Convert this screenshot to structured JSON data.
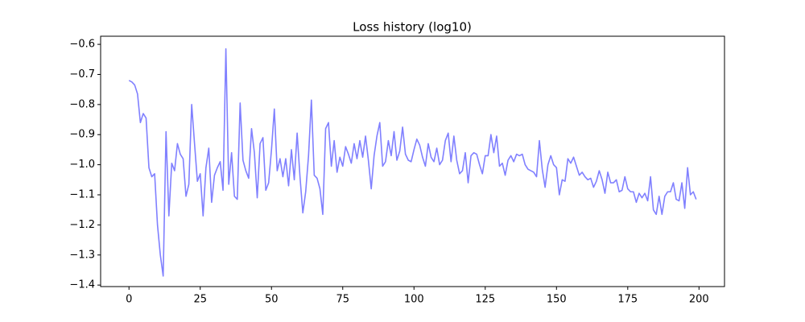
{
  "chart_data": {
    "type": "line",
    "title": "Loss history (log10)",
    "x": [
      0,
      1,
      2,
      3,
      4,
      5,
      6,
      7,
      8,
      9,
      10,
      11,
      12,
      13,
      14,
      15,
      16,
      17,
      18,
      19,
      20,
      21,
      22,
      23,
      24,
      25,
      26,
      27,
      28,
      29,
      30,
      31,
      32,
      33,
      34,
      35,
      36,
      37,
      38,
      39,
      40,
      41,
      42,
      43,
      44,
      45,
      46,
      47,
      48,
      49,
      50,
      51,
      52,
      53,
      54,
      55,
      56,
      57,
      58,
      59,
      60,
      61,
      62,
      63,
      64,
      65,
      66,
      67,
      68,
      69,
      70,
      71,
      72,
      73,
      74,
      75,
      76,
      77,
      78,
      79,
      80,
      81,
      82,
      83,
      84,
      85,
      86,
      87,
      88,
      89,
      90,
      91,
      92,
      93,
      94,
      95,
      96,
      97,
      98,
      99,
      100,
      101,
      102,
      103,
      104,
      105,
      106,
      107,
      108,
      109,
      110,
      111,
      112,
      113,
      114,
      115,
      116,
      117,
      118,
      119,
      120,
      121,
      122,
      123,
      124,
      125,
      126,
      127,
      128,
      129,
      130,
      131,
      132,
      133,
      134,
      135,
      136,
      137,
      138,
      139,
      140,
      141,
      142,
      143,
      144,
      145,
      146,
      147,
      148,
      149,
      150,
      151,
      152,
      153,
      154,
      155,
      156,
      157,
      158,
      159,
      160,
      161,
      162,
      163,
      164,
      165,
      166,
      167,
      168,
      169,
      170,
      171,
      172,
      173,
      174,
      175,
      176,
      177,
      178,
      179,
      180,
      181,
      182,
      183,
      184,
      185,
      186,
      187,
      188,
      189,
      190,
      191,
      192,
      193,
      194,
      195,
      196,
      197,
      198,
      199
    ],
    "series": [
      {
        "color": "#8080ff",
        "values": [
          -0.72,
          -0.725,
          -0.735,
          -0.765,
          -0.86,
          -0.83,
          -0.845,
          -1.01,
          -1.04,
          -1.03,
          -1.2,
          -1.3,
          -1.37,
          -0.89,
          -1.17,
          -0.995,
          -1.02,
          -0.93,
          -0.965,
          -0.98,
          -1.105,
          -1.065,
          -0.8,
          -0.93,
          -1.055,
          -1.03,
          -1.17,
          -1.01,
          -0.945,
          -1.125,
          -1.035,
          -1.01,
          -0.99,
          -1.085,
          -0.615,
          -1.065,
          -0.96,
          -1.105,
          -1.115,
          -0.795,
          -0.985,
          -1.02,
          -1.045,
          -0.88,
          -0.96,
          -1.11,
          -0.93,
          -0.91,
          -1.085,
          -1.06,
          -0.95,
          -0.815,
          -1.02,
          -0.98,
          -1.04,
          -0.98,
          -1.07,
          -0.95,
          -1.05,
          -0.895,
          -1.04,
          -1.16,
          -1.09,
          -0.97,
          -0.785,
          -1.035,
          -1.045,
          -1.08,
          -1.165,
          -0.88,
          -0.86,
          -1.005,
          -0.92,
          -1.025,
          -0.975,
          -1.005,
          -0.94,
          -0.965,
          -0.995,
          -0.93,
          -0.98,
          -0.92,
          -0.975,
          -0.905,
          -0.985,
          -1.08,
          -0.97,
          -0.905,
          -0.86,
          -1.005,
          -0.99,
          -0.92,
          -0.97,
          -0.89,
          -0.985,
          -0.955,
          -0.875,
          -0.965,
          -0.985,
          -0.99,
          -0.95,
          -0.915,
          -0.935,
          -0.975,
          -1.005,
          -0.93,
          -0.975,
          -0.99,
          -0.945,
          -1.0,
          -0.985,
          -0.92,
          -0.895,
          -0.99,
          -0.905,
          -0.985,
          -1.03,
          -1.02,
          -0.96,
          -1.06,
          -0.97,
          -0.96,
          -0.965,
          -1.0,
          -1.03,
          -0.97,
          -0.97,
          -0.9,
          -0.96,
          -0.905,
          -1.005,
          -0.995,
          -1.035,
          -0.985,
          -0.97,
          -0.99,
          -0.965,
          -0.97,
          -0.965,
          -1.0,
          -1.015,
          -1.02,
          -1.025,
          -1.04,
          -0.92,
          -1.015,
          -1.075,
          -1.0,
          -0.97,
          -1.0,
          -1.01,
          -1.1,
          -1.05,
          -1.055,
          -0.98,
          -0.995,
          -0.975,
          -1.005,
          -1.035,
          -1.025,
          -1.04,
          -1.05,
          -1.045,
          -1.075,
          -1.055,
          -1.02,
          -1.05,
          -1.095,
          -1.025,
          -1.06,
          -1.06,
          -1.05,
          -1.09,
          -1.085,
          -1.04,
          -1.08,
          -1.09,
          -1.09,
          -1.125,
          -1.095,
          -1.11,
          -1.095,
          -1.12,
          -1.04,
          -1.15,
          -1.165,
          -1.105,
          -1.165,
          -1.105,
          -1.09,
          -1.09,
          -1.06,
          -1.115,
          -1.12,
          -1.06,
          -1.145,
          -1.01,
          -1.1,
          -1.09,
          -1.115
        ]
      }
    ],
    "xlim": [
      -9.95,
      208.95
    ],
    "xticks": [
      0,
      25,
      50,
      75,
      100,
      125,
      150,
      175,
      200
    ],
    "ylim": [
      -1.405,
      -0.573
    ],
    "yticks": [
      {
        "value": -1.4,
        "label": "−1.4"
      },
      {
        "value": -1.3,
        "label": "−1.3"
      },
      {
        "value": -1.2,
        "label": "−1.2"
      },
      {
        "value": -1.1,
        "label": "−1.1"
      },
      {
        "value": -1.0,
        "label": "−1.0"
      },
      {
        "value": -0.9,
        "label": "−0.9"
      },
      {
        "value": -0.8,
        "label": "−0.8"
      },
      {
        "value": -0.7,
        "label": "−0.7"
      },
      {
        "value": -0.6,
        "label": "−0.6"
      }
    ],
    "grid": false
  }
}
